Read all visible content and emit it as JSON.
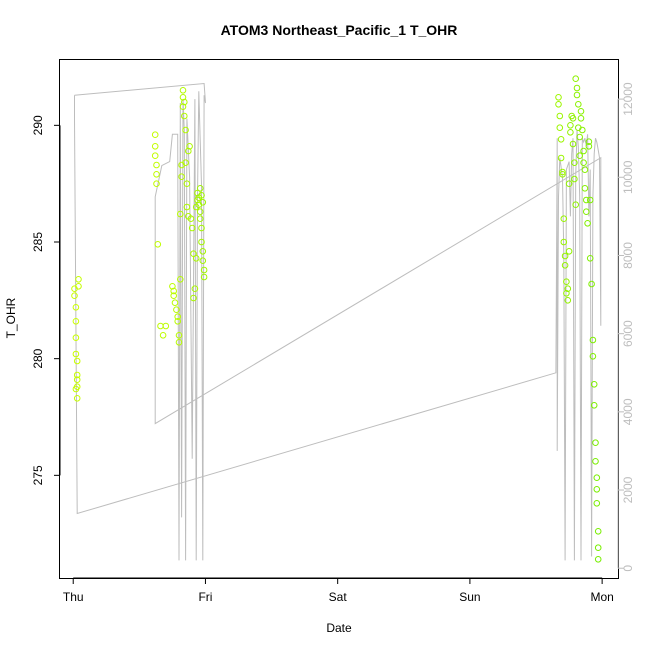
{
  "chart_data": {
    "type": "scatter",
    "title": "ATOM3 Northeast_Pacific_1 T_OHR",
    "xlabel": "Date",
    "ylabel": "T_OHR",
    "x_ticks": [
      {
        "day": 0,
        "label": "Thu"
      },
      {
        "day": 1,
        "label": "Fri"
      },
      {
        "day": 2,
        "label": "Sat"
      },
      {
        "day": 3,
        "label": "Sun"
      },
      {
        "day": 4,
        "label": "Mon"
      }
    ],
    "xlim": [
      -0.1,
      4.12
    ],
    "ylim_left": [
      270.6,
      292.8
    ],
    "ylim_right": [
      -250,
      13000
    ],
    "left_ticks": [
      275,
      280,
      285,
      290
    ],
    "right_ticks": [
      0,
      2000,
      4000,
      6000,
      8000,
      10000,
      12000
    ],
    "axis_colors": {
      "left": "#000000",
      "right": "#bdbdbd"
    },
    "series": [
      {
        "type": "points",
        "axis": "left",
        "color_gradient": [
          "#ccff00",
          "#77ee00"
        ],
        "points": [
          [
            0.01,
            283.0
          ],
          [
            0.01,
            282.7
          ],
          [
            0.02,
            282.2
          ],
          [
            0.02,
            281.6
          ],
          [
            0.02,
            280.9
          ],
          [
            0.02,
            280.2
          ],
          [
            0.03,
            279.9
          ],
          [
            0.03,
            279.3
          ],
          [
            0.03,
            278.8
          ],
          [
            0.03,
            278.3
          ],
          [
            0.04,
            283.4
          ],
          [
            0.04,
            283.1
          ],
          [
            0.03,
            279.1
          ],
          [
            0.02,
            278.7
          ],
          [
            0.62,
            289.6
          ],
          [
            0.62,
            289.1
          ],
          [
            0.62,
            288.7
          ],
          [
            0.63,
            288.3
          ],
          [
            0.63,
            287.9
          ],
          [
            0.63,
            287.5
          ],
          [
            0.64,
            284.9
          ],
          [
            0.66,
            281.4
          ],
          [
            0.68,
            281.0
          ],
          [
            0.7,
            281.4
          ],
          [
            0.75,
            283.1
          ],
          [
            0.76,
            282.9
          ],
          [
            0.76,
            282.7
          ],
          [
            0.77,
            282.4
          ],
          [
            0.78,
            282.1
          ],
          [
            0.79,
            281.8
          ],
          [
            0.79,
            281.6
          ],
          [
            0.8,
            281.0
          ],
          [
            0.8,
            280.7
          ],
          [
            0.81,
            283.4
          ],
          [
            0.81,
            286.2
          ],
          [
            0.82,
            287.8
          ],
          [
            0.82,
            288.3
          ],
          [
            0.83,
            290.8
          ],
          [
            0.83,
            291.5
          ],
          [
            0.83,
            291.2
          ],
          [
            0.84,
            291.0
          ],
          [
            0.84,
            290.4
          ],
          [
            0.85,
            289.8
          ],
          [
            0.85,
            288.4
          ],
          [
            0.86,
            287.5
          ],
          [
            0.86,
            286.5
          ],
          [
            0.87,
            286.1
          ],
          [
            0.87,
            288.9
          ],
          [
            0.88,
            289.1
          ],
          [
            0.89,
            286.0
          ],
          [
            0.9,
            285.6
          ],
          [
            0.91,
            284.5
          ],
          [
            0.91,
            282.6
          ],
          [
            0.92,
            283.0
          ],
          [
            0.93,
            284.3
          ],
          [
            0.93,
            286.5
          ],
          [
            0.94,
            286.8
          ],
          [
            0.94,
            287.1
          ],
          [
            0.95,
            286.9
          ],
          [
            0.95,
            286.6
          ],
          [
            0.96,
            286.3
          ],
          [
            0.96,
            286.0
          ],
          [
            0.97,
            285.6
          ],
          [
            0.97,
            285.0
          ],
          [
            0.98,
            284.6
          ],
          [
            0.98,
            284.2
          ],
          [
            0.99,
            283.8
          ],
          [
            0.99,
            283.5
          ],
          [
            0.96,
            287.3
          ],
          [
            0.97,
            287.0
          ],
          [
            0.98,
            286.7
          ],
          [
            3.67,
            291.2
          ],
          [
            3.67,
            290.9
          ],
          [
            3.68,
            290.4
          ],
          [
            3.68,
            289.9
          ],
          [
            3.69,
            289.4
          ],
          [
            3.69,
            288.6
          ],
          [
            3.7,
            288.0
          ],
          [
            3.7,
            287.9
          ],
          [
            3.71,
            286.0
          ],
          [
            3.71,
            285.0
          ],
          [
            3.72,
            284.4
          ],
          [
            3.72,
            284.0
          ],
          [
            3.73,
            283.3
          ],
          [
            3.73,
            282.8
          ],
          [
            3.74,
            282.5
          ],
          [
            3.74,
            283.0
          ],
          [
            3.75,
            284.6
          ],
          [
            3.75,
            287.5
          ],
          [
            3.76,
            289.7
          ],
          [
            3.76,
            290.0
          ],
          [
            3.77,
            290.4
          ],
          [
            3.78,
            290.3
          ],
          [
            3.78,
            289.2
          ],
          [
            3.79,
            288.4
          ],
          [
            3.79,
            287.7
          ],
          [
            3.8,
            286.6
          ],
          [
            3.8,
            292.0
          ],
          [
            3.81,
            291.6
          ],
          [
            3.81,
            291.3
          ],
          [
            3.82,
            290.9
          ],
          [
            3.82,
            289.9
          ],
          [
            3.83,
            289.5
          ],
          [
            3.83,
            288.7
          ],
          [
            3.84,
            290.6
          ],
          [
            3.84,
            290.3
          ],
          [
            3.85,
            289.8
          ],
          [
            3.86,
            288.9
          ],
          [
            3.86,
            288.4
          ],
          [
            3.87,
            288.1
          ],
          [
            3.87,
            287.3
          ],
          [
            3.88,
            286.8
          ],
          [
            3.88,
            286.3
          ],
          [
            3.89,
            285.8
          ],
          [
            3.9,
            289.3
          ],
          [
            3.9,
            289.1
          ],
          [
            3.91,
            286.8
          ],
          [
            3.91,
            284.3
          ],
          [
            3.92,
            283.2
          ],
          [
            3.93,
            280.8
          ],
          [
            3.93,
            280.1
          ],
          [
            3.94,
            278.9
          ],
          [
            3.94,
            278.0
          ],
          [
            3.95,
            276.4
          ],
          [
            3.95,
            275.6
          ],
          [
            3.96,
            274.9
          ],
          [
            3.96,
            274.4
          ],
          [
            3.96,
            273.8
          ],
          [
            3.97,
            272.6
          ],
          [
            3.97,
            271.9
          ],
          [
            3.97,
            271.4
          ]
        ]
      },
      {
        "type": "line",
        "axis": "right",
        "color": "#bdbdbd",
        "points": [
          [
            0.01,
            12100
          ],
          [
            0.01,
            11500
          ],
          [
            0.03,
            1400
          ],
          [
            3.65,
            5000
          ],
          [
            3.66,
            11000
          ],
          [
            3.66,
            3000
          ],
          [
            3.67,
            9500
          ],
          [
            3.68,
            10500
          ],
          [
            3.7,
            10000
          ],
          [
            3.71,
            8000
          ],
          [
            3.72,
            200
          ],
          [
            3.73,
            10200
          ],
          [
            3.75,
            10400
          ],
          [
            3.76,
            9000
          ],
          [
            3.77,
            10600
          ],
          [
            3.78,
            11000
          ],
          [
            3.79,
            200
          ],
          [
            3.8,
            10000
          ],
          [
            3.81,
            11200
          ],
          [
            3.82,
            10800
          ],
          [
            3.83,
            9500
          ],
          [
            3.84,
            200
          ],
          [
            3.85,
            11000
          ],
          [
            3.86,
            10900
          ],
          [
            3.87,
            11000
          ],
          [
            3.88,
            10800
          ],
          [
            3.89,
            11100
          ],
          [
            3.9,
            9000
          ],
          [
            3.91,
            10200
          ],
          [
            3.92,
            300
          ],
          [
            3.93,
            9500
          ],
          [
            3.94,
            10600
          ],
          [
            3.95,
            11000
          ],
          [
            3.96,
            10900
          ],
          [
            3.97,
            10700
          ],
          [
            3.98,
            10500
          ],
          [
            3.99,
            6200
          ],
          [
            3.99,
            10500
          ],
          [
            0.62,
            3700
          ],
          [
            0.62,
            9500
          ],
          [
            0.67,
            10300
          ],
          [
            0.73,
            10400
          ],
          [
            0.75,
            11100
          ],
          [
            0.79,
            11100
          ],
          [
            0.8,
            200
          ],
          [
            0.81,
            11900
          ],
          [
            0.82,
            1300
          ],
          [
            0.83,
            12000
          ],
          [
            0.84,
            11200
          ],
          [
            0.85,
            200
          ],
          [
            0.86,
            11500
          ],
          [
            0.88,
            10000
          ],
          [
            0.9,
            2800
          ],
          [
            0.92,
            12000
          ],
          [
            0.93,
            200
          ],
          [
            0.94,
            9500
          ],
          [
            0.95,
            12200
          ],
          [
            0.97,
            9800
          ],
          [
            0.98,
            200
          ],
          [
            0.99,
            12100
          ],
          [
            1.0,
            11900
          ],
          [
            0.99,
            12400
          ],
          [
            0.01,
            12100
          ]
        ]
      }
    ]
  }
}
